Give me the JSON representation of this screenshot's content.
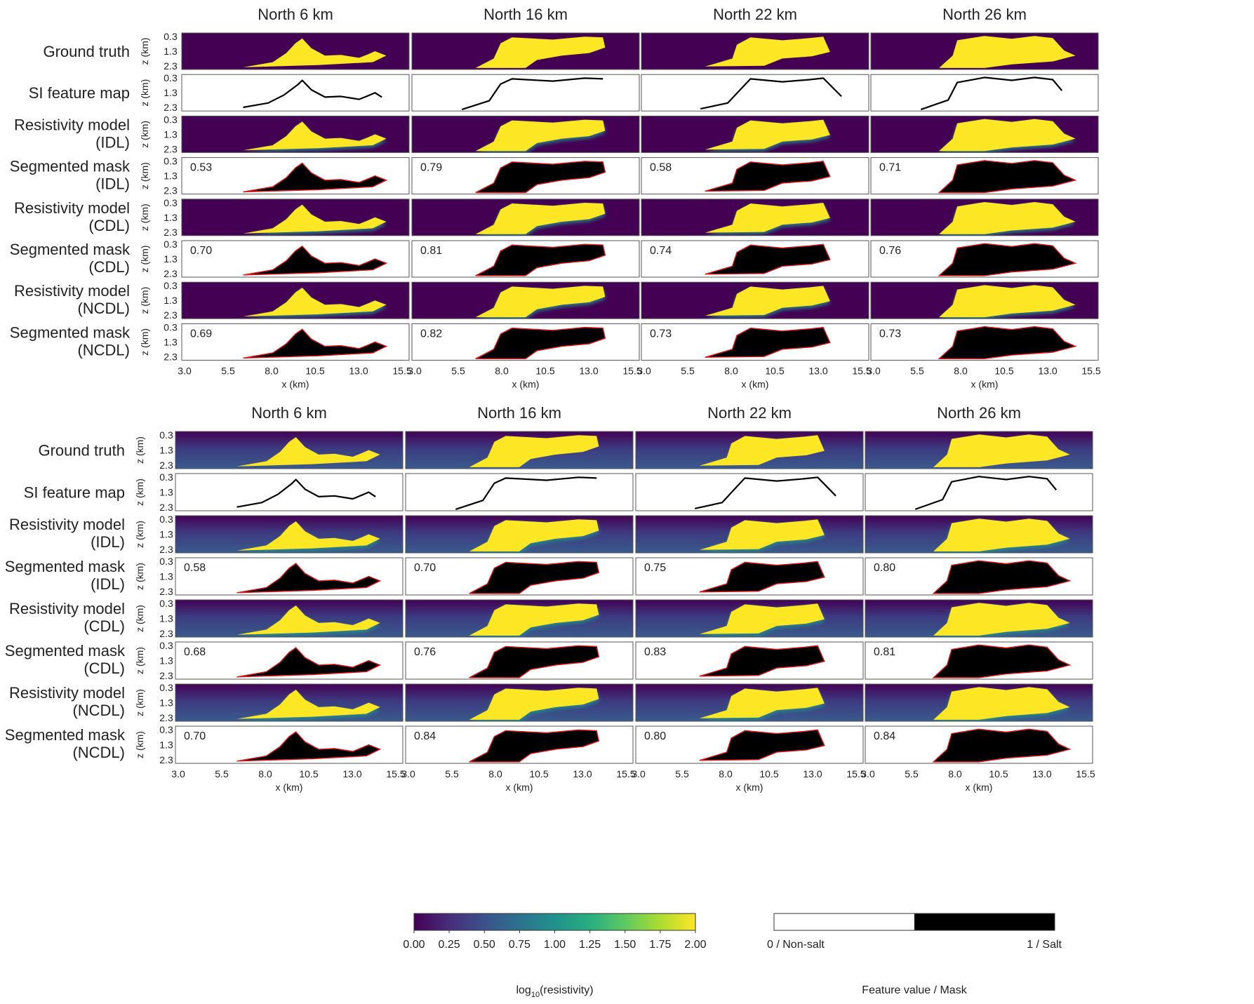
{
  "colors": {
    "low": "#440154",
    "mid": "#21918c",
    "high": "#fde725",
    "mask": "#000000",
    "outline": "#e31a1c",
    "background_top": "#440154",
    "background_bottom": "#3a4f8a"
  },
  "blocks": [
    {
      "column_titles": [
        "North 6 km",
        "North 16 km",
        "North 22 km",
        "North 26 km"
      ],
      "rows": [
        {
          "label": [
            "Ground truth"
          ],
          "kind": "truth"
        },
        {
          "label": [
            "SI feature map"
          ],
          "kind": "feature"
        },
        {
          "label": [
            "Resistivity model",
            "(IDL)"
          ],
          "kind": "resistivity"
        },
        {
          "label": [
            "Segmented mask",
            "(IDL)"
          ],
          "kind": "mask",
          "scores": [
            "0.53",
            "0.79",
            "0.58",
            "0.71"
          ]
        },
        {
          "label": [
            "Resistivity model",
            "(CDL)"
          ],
          "kind": "resistivity"
        },
        {
          "label": [
            "Segmented mask",
            "(CDL)"
          ],
          "kind": "mask",
          "scores": [
            "0.70",
            "0.81",
            "0.74",
            "0.76"
          ]
        },
        {
          "label": [
            "Resistivity model",
            "(NCDL)"
          ],
          "kind": "resistivity"
        },
        {
          "label": [
            "Segmented mask",
            "(NCDL)"
          ],
          "kind": "mask",
          "scores": [
            "0.69",
            "0.82",
            "0.73",
            "0.73"
          ]
        }
      ]
    },
    {
      "column_titles": [
        "North 6 km",
        "North 16 km",
        "North 22 km",
        "North 26 km"
      ],
      "rows": [
        {
          "label": [
            "Ground truth"
          ],
          "kind": "truth"
        },
        {
          "label": [
            "SI feature map"
          ],
          "kind": "feature"
        },
        {
          "label": [
            "Resistivity model",
            "(IDL)"
          ],
          "kind": "resistivity"
        },
        {
          "label": [
            "Segmented mask",
            "(IDL)"
          ],
          "kind": "mask",
          "scores": [
            "0.58",
            "0.70",
            "0.75",
            "0.80"
          ]
        },
        {
          "label": [
            "Resistivity model",
            "(CDL)"
          ],
          "kind": "resistivity"
        },
        {
          "label": [
            "Segmented mask",
            "(CDL)"
          ],
          "kind": "mask",
          "scores": [
            "0.68",
            "0.76",
            "0.83",
            "0.81"
          ]
        },
        {
          "label": [
            "Resistivity model",
            "(NCDL)"
          ],
          "kind": "resistivity"
        },
        {
          "label": [
            "Segmented mask",
            "(NCDL)"
          ],
          "kind": "mask",
          "scores": [
            "0.70",
            "0.84",
            "0.80",
            "0.84"
          ]
        }
      ]
    }
  ],
  "axes": {
    "z_label": "z (km)",
    "z_ticks": [
      "0.3",
      "1.3",
      "2.3"
    ],
    "x_label": "x (km)",
    "x_ticks": [
      "3.0",
      "5.5",
      "8.0",
      "10.5",
      "13.0",
      "15.5"
    ]
  },
  "colorbar_resistivity": {
    "ticks": [
      "0.00",
      "0.25",
      "0.50",
      "0.75",
      "1.00",
      "1.25",
      "1.50",
      "1.75",
      "2.00"
    ],
    "title_prefix": "log",
    "title_sub": "10",
    "title_suffix": "(resistivity)"
  },
  "colorbar_mask": {
    "left_label": "0 / Non-salt",
    "right_label": "1 / Salt",
    "title": "Feature value / Mask"
  }
}
